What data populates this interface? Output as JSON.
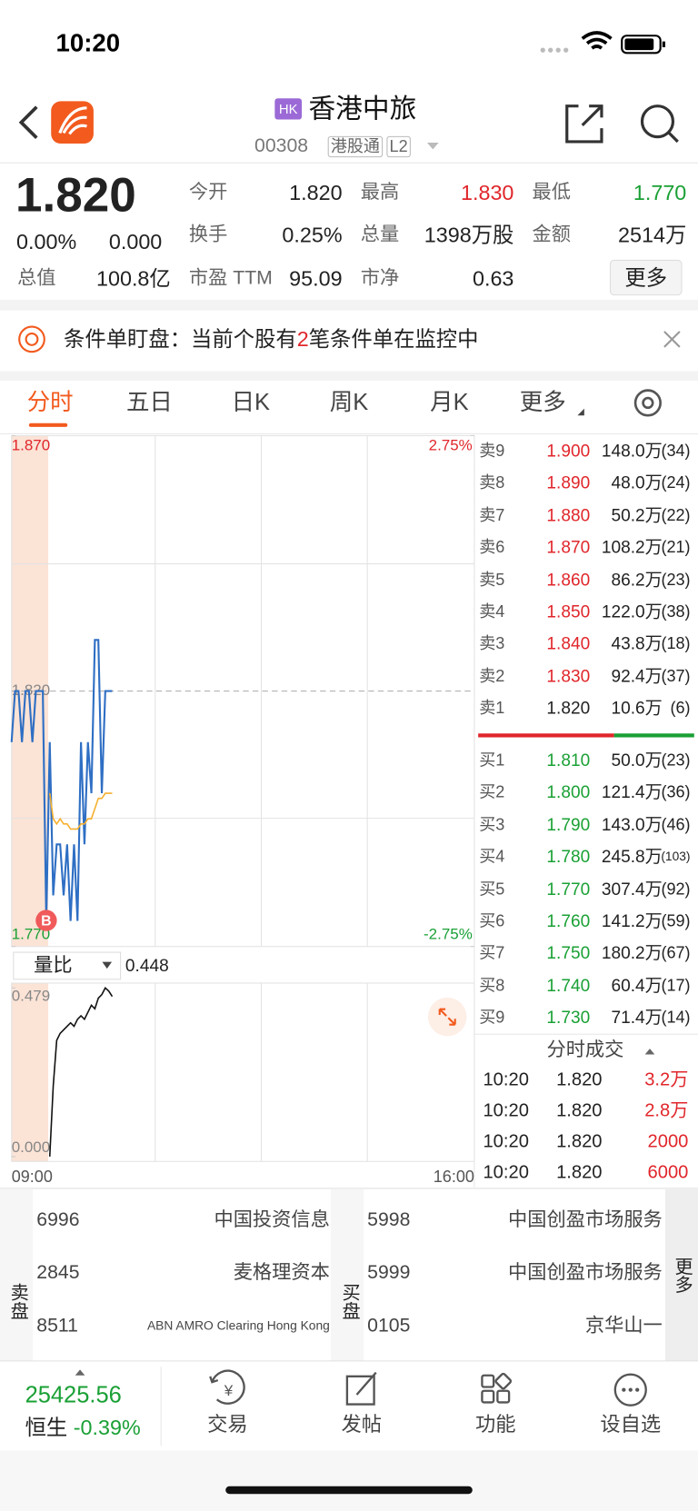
{
  "status_bar": {
    "time": "10:20"
  },
  "header": {
    "market_badge": "HK",
    "name": "香港中旅",
    "code": "00308",
    "tags": [
      "港股通",
      "L2"
    ]
  },
  "quote": {
    "price": "1.820",
    "change_pct": "0.00%",
    "change": "0.000",
    "fields": [
      {
        "label": "今开",
        "value": "1.820"
      },
      {
        "label": "最高",
        "value": "1.830",
        "color": "#e0262b"
      },
      {
        "label": "最低",
        "value": "1.770",
        "color": "#1aa035"
      },
      {
        "label": "换手",
        "value": "0.25%"
      },
      {
        "label": "总量",
        "value": "1398万股"
      },
      {
        "label": "金额",
        "value": "2514万"
      },
      {
        "label": "总值",
        "value": "100.8亿"
      },
      {
        "label": "市盈 TTM",
        "value": "95.09"
      },
      {
        "label": "市净",
        "value": "0.63"
      }
    ],
    "more_button": "更多"
  },
  "alert": {
    "label": "条件单盯盘：",
    "text_before": "当前个股有",
    "count": 2,
    "text_after": "笔条件单在监控中"
  },
  "tabs": [
    "分时",
    "五日",
    "日K",
    "周K",
    "月K",
    "更多"
  ],
  "chart_data": {
    "type": "line",
    "ylim": [
      1.77,
      1.87
    ],
    "yticks": [
      {
        "value": 1.87,
        "label": "1.870"
      },
      {
        "value": 1.77,
        "label": "1.770"
      }
    ],
    "y2lim": [
      -2.75,
      2.75
    ],
    "y2ticks": [
      {
        "value": 2.75,
        "label": "2.75%"
      },
      {
        "value": -2.75,
        "label": "-2.75%"
      }
    ],
    "prev_close": {
      "value": 1.82,
      "label": "1.820"
    },
    "x_labels": [
      "09:00",
      "16:00"
    ],
    "series": [
      {
        "name": "price",
        "color": "#2f6fc4",
        "values": [
          1.81,
          1.82,
          1.82,
          1.81,
          1.82,
          1.82,
          1.81,
          1.82,
          1.82,
          1.82,
          1.775,
          1.81,
          1.78,
          1.79,
          1.79,
          1.78,
          1.79,
          1.775,
          1.79,
          1.775,
          1.81,
          1.79,
          1.81,
          1.8,
          1.83,
          1.83,
          1.8,
          1.82,
          1.82,
          1.82
        ]
      },
      {
        "name": "average",
        "color": "#f5b030",
        "values": [
          null,
          null,
          null,
          null,
          null,
          null,
          null,
          null,
          null,
          null,
          null,
          1.8,
          1.795,
          1.794,
          1.795,
          1.794,
          1.794,
          1.793,
          1.793,
          1.793,
          1.794,
          1.794,
          1.795,
          1.795,
          1.797,
          1.799,
          1.799,
          1.8,
          1.8,
          1.8
        ]
      }
    ],
    "trade_marker": "B",
    "volume_ratio": {
      "indicator": "量比",
      "value": 0.448,
      "ylim": [
        0,
        0.479
      ],
      "yticks": [
        {
          "value": 0,
          "label": "0.000"
        },
        0.479
      ],
      "color": "#111111",
      "values": [
        null,
        null,
        null,
        null,
        null,
        null,
        null,
        null,
        null,
        null,
        null,
        0,
        0.2,
        0.33,
        0.35,
        0.36,
        0.37,
        0.38,
        0.37,
        0.39,
        0.4,
        0.39,
        0.41,
        0.43,
        0.42,
        0.45,
        0.46,
        0.479,
        0.47,
        0.455
      ]
    }
  },
  "order_book": {
    "asks": [
      [
        "卖9",
        "1.900",
        "148.0万",
        "(34)"
      ],
      [
        "卖8",
        "1.890",
        "48.0万",
        "(24)"
      ],
      [
        "卖7",
        "1.880",
        "50.2万",
        "(22)"
      ],
      [
        "卖6",
        "1.870",
        "108.2万",
        "(21)"
      ],
      [
        "卖5",
        "1.860",
        "86.2万",
        "(23)"
      ],
      [
        "卖4",
        "1.850",
        "122.0万",
        "(38)"
      ],
      [
        "卖3",
        "1.840",
        "43.8万",
        "(18)"
      ],
      [
        "卖2",
        "1.830",
        "92.4万",
        "(37)"
      ],
      [
        "卖1",
        "1.820",
        "10.6万",
        "(6)"
      ]
    ],
    "bids": [
      [
        "买1",
        "1.810",
        "50.0万",
        "(23)"
      ],
      [
        "买2",
        "1.800",
        "121.4万",
        "(36)"
      ],
      [
        "买3",
        "1.790",
        "143.0万",
        "(46)"
      ],
      [
        "买4",
        "1.780",
        "245.8万",
        "(103)"
      ],
      [
        "买5",
        "1.770",
        "307.4万",
        "(92)"
      ],
      [
        "买6",
        "1.760",
        "141.2万",
        "(59)"
      ],
      [
        "买7",
        "1.750",
        "180.2万",
        "(67)"
      ],
      [
        "买8",
        "1.740",
        "60.4万",
        "(17)"
      ],
      [
        "买9",
        "1.730",
        "71.4万",
        "(14)"
      ]
    ]
  },
  "trades": {
    "title": "分时成交",
    "rows": [
      [
        "10:20",
        "1.820",
        "3.2万"
      ],
      [
        "10:20",
        "1.820",
        "2.8万"
      ],
      [
        "10:20",
        "1.820",
        "2000"
      ],
      [
        "10:20",
        "1.820",
        "6000"
      ]
    ]
  },
  "broker_queue": {
    "sell_label": "卖盘",
    "buy_label": "买盘",
    "more": "更多",
    "sell": [
      [
        "6996",
        "中国投资信息"
      ],
      [
        "2845",
        "麦格理资本"
      ],
      [
        "8511",
        "ABN AMRO Clearing Hong Kong"
      ]
    ],
    "buy": [
      [
        "5998",
        "中国创盈市场服务"
      ],
      [
        "5999",
        "中国创盈市场服务"
      ],
      [
        "0105",
        "京华山一"
      ]
    ]
  },
  "bottom_bar": {
    "index_value": "25425.56",
    "index_name": "恒生",
    "index_change": "-0.39%",
    "items": [
      "交易",
      "发帖",
      "功能",
      "设自选"
    ]
  }
}
